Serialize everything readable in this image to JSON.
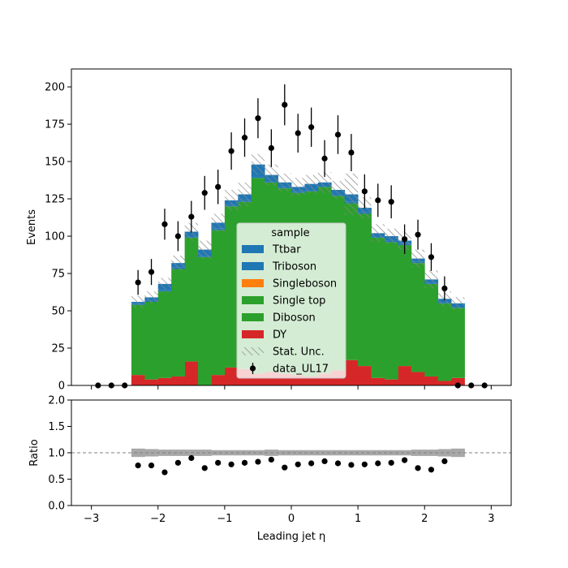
{
  "chart_data": [
    {
      "type": "stacked-histogram",
      "ylabel": "Events",
      "ylim": [
        0,
        212
      ],
      "xlim": [
        -3.3,
        3.3
      ],
      "yticks": [
        0,
        25,
        50,
        75,
        100,
        125,
        150,
        175,
        200
      ],
      "bin_edges": [
        -3.0,
        -2.8,
        -2.6,
        -2.4,
        -2.2,
        -2.0,
        -1.8,
        -1.6,
        -1.4,
        -1.2,
        -1.0,
        -0.8,
        -0.6,
        -0.4,
        -0.2,
        0.0,
        0.2,
        0.4,
        0.6,
        0.8,
        1.0,
        1.2,
        1.4,
        1.6,
        1.8,
        2.0,
        2.2,
        2.4,
        2.6,
        2.8,
        3.0
      ],
      "series": [
        {
          "name": "DY",
          "color": "#d62728",
          "values": [
            0,
            0,
            0,
            7,
            4,
            5,
            6,
            16,
            0,
            7,
            12,
            11,
            8,
            9,
            8,
            7,
            6,
            8,
            10,
            17,
            13,
            5,
            4,
            13,
            9,
            6,
            3,
            5,
            0,
            0
          ]
        },
        {
          "name": "Diboson",
          "color": "#2ca02c",
          "values": [
            0,
            0,
            0,
            47,
            52,
            58,
            72,
            83,
            86,
            97,
            108,
            112,
            131,
            127,
            124,
            122,
            124,
            125,
            117,
            105,
            102,
            94,
            92,
            81,
            73,
            62,
            52,
            47,
            0,
            0
          ]
        },
        {
          "name": "Single top",
          "color": "#2ca02c",
          "values": [
            0,
            0,
            0,
            0,
            0,
            0,
            0,
            0,
            0,
            0,
            0,
            0,
            0,
            0,
            0,
            0,
            0,
            0,
            0,
            0,
            0,
            0,
            0,
            0,
            0,
            0,
            0,
            0,
            0,
            0
          ]
        },
        {
          "name": "Singleboson",
          "color": "#ff7f0e",
          "values": [
            0,
            0,
            0,
            0,
            0,
            0,
            0,
            0,
            0,
            0,
            0,
            0,
            0,
            0,
            0,
            0,
            0,
            0,
            0,
            0,
            0,
            0,
            0,
            0,
            0,
            0,
            0,
            0,
            0,
            0
          ]
        },
        {
          "name": "Triboson",
          "color": "#1f77b4",
          "values": [
            0,
            0,
            0,
            1,
            1,
            1,
            1,
            1,
            1,
            1,
            1,
            1,
            1,
            1,
            1,
            1,
            1,
            1,
            1,
            1,
            1,
            1,
            1,
            1,
            1,
            1,
            1,
            1,
            0,
            0
          ]
        },
        {
          "name": "Ttbar",
          "color": "#1f77b4",
          "values": [
            0,
            0,
            0,
            1,
            2,
            4,
            3,
            3,
            4,
            4,
            3,
            4,
            8,
            4,
            3,
            3,
            4,
            2,
            3,
            5,
            3,
            2,
            3,
            2,
            2,
            2,
            2,
            2,
            0,
            0
          ]
        }
      ],
      "stat_unc": [
        0,
        0,
        0,
        4,
        4,
        4,
        5,
        6,
        6,
        6,
        7,
        8,
        7,
        7,
        6,
        6,
        6,
        7,
        6,
        14,
        7,
        6,
        5,
        6,
        6,
        6,
        5,
        4,
        0,
        0
      ],
      "data": {
        "name": "data_UL17",
        "x": [
          -2.9,
          -2.7,
          -2.5,
          -2.3,
          -2.1,
          -1.9,
          -1.7,
          -1.5,
          -1.3,
          -1.1,
          -0.9,
          -0.7,
          -0.5,
          -0.3,
          -0.1,
          0.1,
          0.3,
          0.5,
          0.7,
          0.9,
          1.1,
          1.3,
          1.5,
          1.7,
          1.9,
          2.1,
          2.3,
          2.5,
          2.7,
          2.9
        ],
        "values": [
          0,
          0,
          0,
          69,
          76,
          108,
          100,
          113,
          129,
          133,
          157,
          166,
          179,
          159,
          188,
          169,
          173,
          152,
          168,
          156,
          130,
          124,
          123,
          98,
          101,
          86,
          65,
          0,
          0,
          0
        ]
      },
      "legend": {
        "title": "sample",
        "placement": "center",
        "entries": [
          "Ttbar",
          "Triboson",
          "Singleboson",
          "Single top",
          "Diboson",
          "DY",
          "Stat. Unc.",
          "data_UL17"
        ]
      }
    },
    {
      "type": "ratio",
      "ylabel": "Ratio",
      "xlabel": "Leading jet  η",
      "ylim": [
        0.0,
        2.0
      ],
      "xlim": [
        -3.3,
        3.3
      ],
      "yticks": [
        "0.0",
        "0.5",
        "1.0",
        "1.5",
        "2.0"
      ],
      "xticks": [
        -3,
        -2,
        -1,
        0,
        1,
        2,
        3
      ],
      "reference_line": 1.0,
      "band_bins": [
        3,
        28
      ],
      "band_halfwidth": [
        0.08,
        0.07,
        0.06,
        0.06,
        0.06,
        0.06,
        0.05,
        0.05,
        0.05,
        0.05,
        0.06,
        0.05,
        0.05,
        0.05,
        0.05,
        0.05,
        0.05,
        0.05,
        0.05,
        0.05,
        0.05,
        0.06,
        0.06,
        0.07,
        0.08
      ],
      "x": [
        -2.3,
        -2.1,
        -1.9,
        -1.7,
        -1.5,
        -1.3,
        -1.1,
        -0.9,
        -0.7,
        -0.5,
        -0.3,
        -0.1,
        0.1,
        0.3,
        0.5,
        0.7,
        0.9,
        1.1,
        1.3,
        1.5,
        1.7,
        1.9,
        2.1,
        2.3
      ],
      "values": [
        0.76,
        0.76,
        0.63,
        0.81,
        0.9,
        0.71,
        0.81,
        0.78,
        0.81,
        0.83,
        0.87,
        0.72,
        0.78,
        0.8,
        0.84,
        0.8,
        0.77,
        0.78,
        0.8,
        0.81,
        0.86,
        0.71,
        0.68,
        0.84
      ]
    }
  ]
}
